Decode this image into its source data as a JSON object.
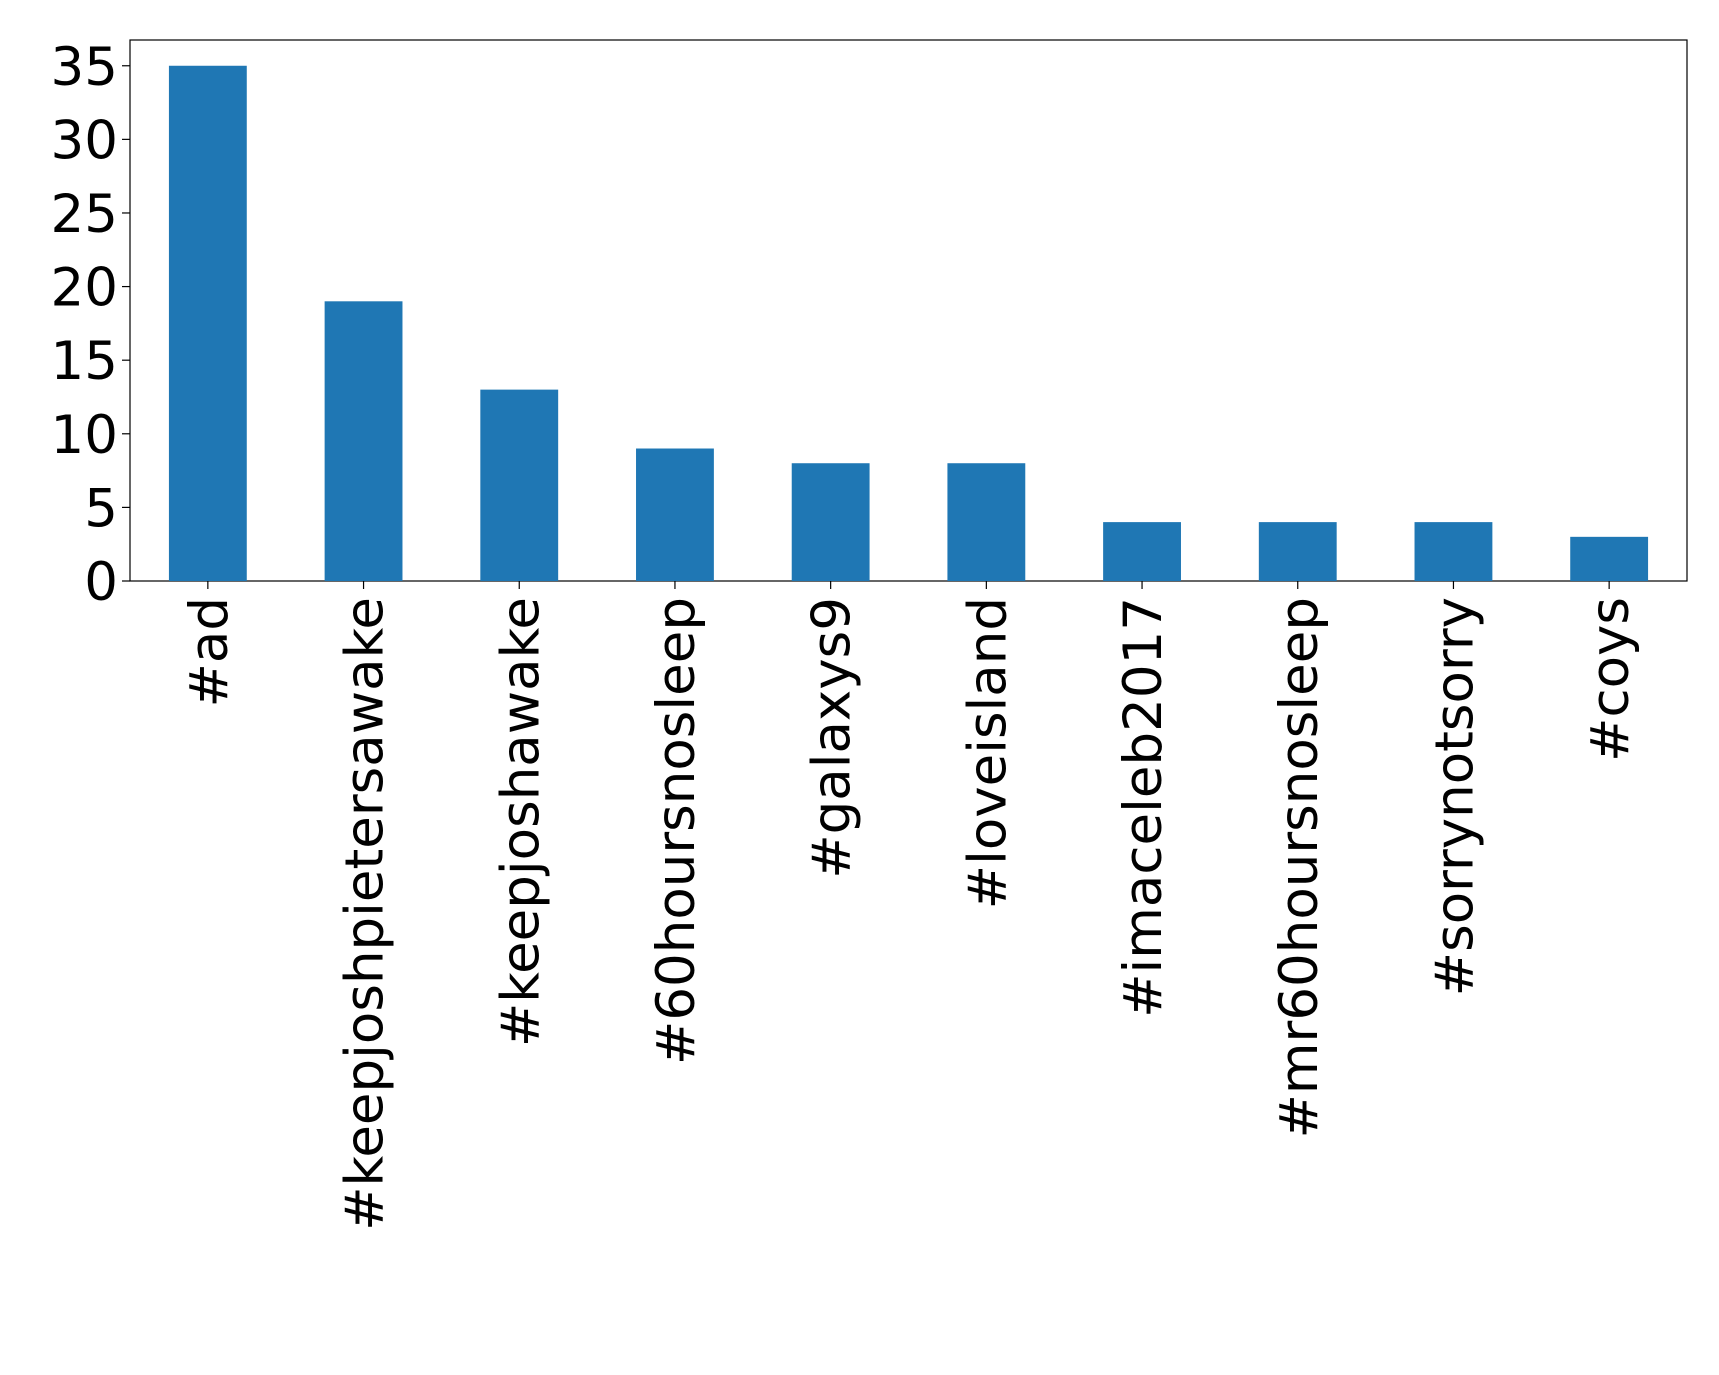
{
  "chart_data": {
    "type": "bar",
    "categories": [
      "#ad",
      "#keepjoshpietersawake",
      "#keepjoshawake",
      "#60hoursnosleep",
      "#galaxys9",
      "#loveisland",
      "#imaceleb2017",
      "#mr60hoursnosleep",
      "#sorrynotsorry",
      "#coys"
    ],
    "values": [
      35,
      19,
      13,
      9,
      8,
      8,
      4,
      4,
      4,
      3
    ],
    "color": "#1f77b4",
    "ylim": [
      0,
      36.75
    ],
    "yticks": [
      0,
      5,
      10,
      15,
      20,
      25,
      30,
      35
    ],
    "grid": false
  }
}
